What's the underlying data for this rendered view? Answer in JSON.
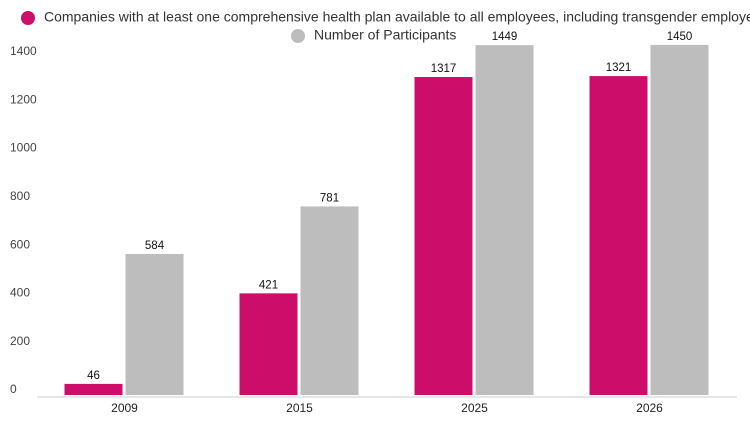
{
  "chart_data": {
    "type": "bar",
    "categories": [
      "2009",
      "2015",
      "2025",
      "2026"
    ],
    "series": [
      {
        "name": "Companies with at least one comprehensive health plan available to all employees, including transgender employees",
        "color": "#cc0e6a",
        "values": [
          46,
          421,
          1317,
          1321
        ]
      },
      {
        "name": "Number of Participants",
        "color": "#bdbdbd",
        "values": [
          584,
          781,
          1449,
          1450
        ]
      }
    ],
    "ylim": [
      0,
      1400
    ],
    "yticks": [
      0,
      200,
      400,
      600,
      800,
      1000,
      1200,
      1400
    ],
    "grid": false
  }
}
